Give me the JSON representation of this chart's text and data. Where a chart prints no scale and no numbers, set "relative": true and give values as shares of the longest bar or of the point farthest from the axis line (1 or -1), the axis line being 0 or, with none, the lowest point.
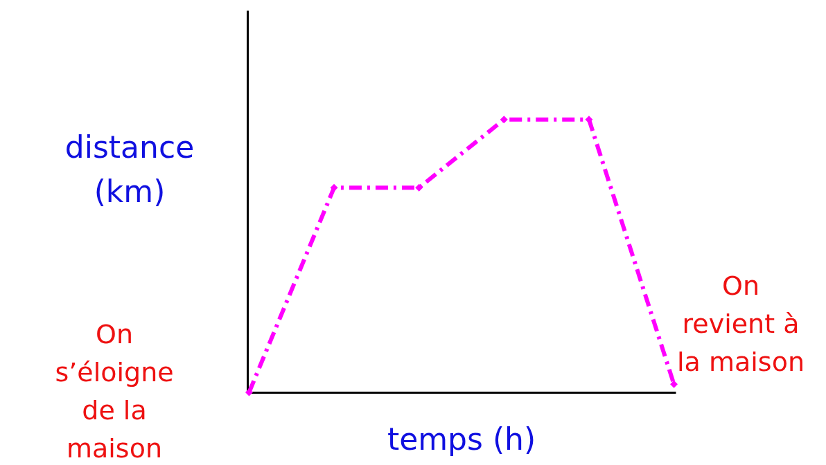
{
  "chart_data": {
    "type": "line",
    "relative": true,
    "xlabel": "temps (h)",
    "ylabel": "distance (km)",
    "categories": [
      null,
      null,
      null,
      null,
      null,
      null
    ],
    "series": [
      {
        "color": "#ff00ff",
        "values": [
          0,
          0.75,
          0.75,
          1,
          1,
          0.03
        ]
      }
    ],
    "marker": "diamond",
    "line_style": "dashed",
    "annotations": [
      "On s’éloigne de la maison",
      "On revient à la maison"
    ],
    "grid": false
  }
}
